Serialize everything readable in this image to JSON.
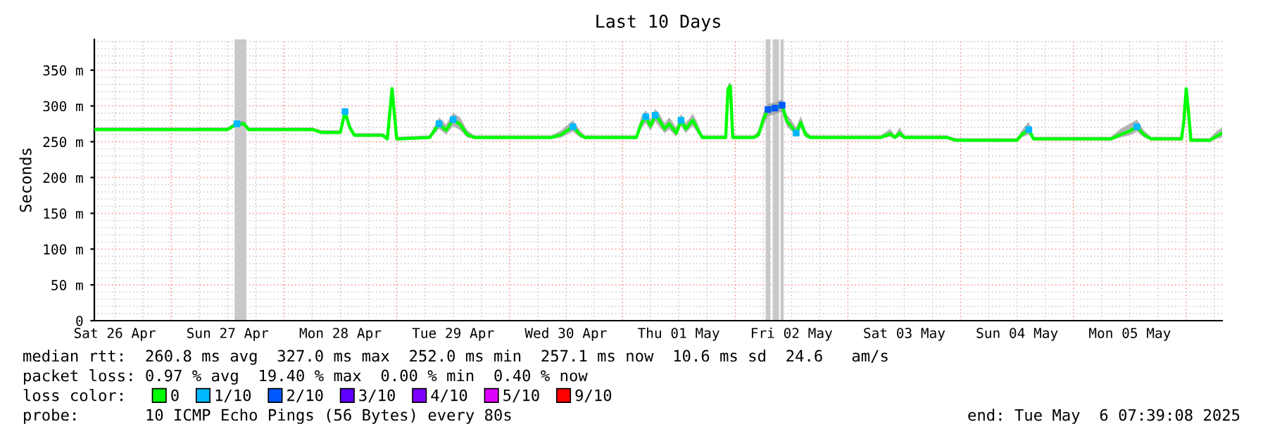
{
  "chart_data": {
    "type": "line",
    "title": "Last 10 Days",
    "ylabel": "Seconds",
    "xlim": [
      "2025-04-26T07:39",
      "2025-05-06T07:39"
    ],
    "xticks": [
      {
        "value": "2025-04-26T12:00",
        "label": "Sat 26 Apr"
      },
      {
        "value": "2025-04-27T12:00",
        "label": "Sun 27 Apr"
      },
      {
        "value": "2025-04-28T12:00",
        "label": "Mon 28 Apr"
      },
      {
        "value": "2025-04-29T12:00",
        "label": "Tue 29 Apr"
      },
      {
        "value": "2025-04-30T12:00",
        "label": "Wed 30 Apr"
      },
      {
        "value": "2025-05-01T12:00",
        "label": "Thu 01 May"
      },
      {
        "value": "2025-05-02T12:00",
        "label": "Fri 02 May"
      },
      {
        "value": "2025-05-03T12:00",
        "label": "Sat 03 May"
      },
      {
        "value": "2025-05-04T12:00",
        "label": "Sun 04 May"
      },
      {
        "value": "2025-05-05T12:00",
        "label": "Mon 05 May"
      }
    ],
    "ylim": [
      0,
      393
    ],
    "yticks": [
      0,
      {
        "value": 50,
        "label": "50 m"
      },
      {
        "value": 100,
        "label": "100 m"
      },
      {
        "value": 150,
        "label": "150 m"
      },
      {
        "value": 200,
        "label": "200 m"
      },
      {
        "value": 250,
        "label": "250 m"
      },
      {
        "value": 300,
        "label": "300 m"
      },
      {
        "value": 350,
        "label": "350 m"
      }
    ],
    "grid": true,
    "legend": "bottom",
    "legend_title": "loss color:",
    "marker": "none",
    "line_style": "solid",
    "series": [
      {
        "name": "0",
        "color": "#00ff00",
        "x": [
          "2025-04-26T07:39",
          "2025-04-26T21:00",
          "2025-04-27T12:00",
          "2025-04-27T14:00",
          "2025-04-27T15:30",
          "2025-04-27T16:30",
          "2025-04-28T06:00",
          "2025-04-28T08:00",
          "2025-04-28T12:00",
          "2025-04-28T13:00",
          "2025-04-28T14:00",
          "2025-04-28T15:00",
          "2025-04-28T21:00",
          "2025-04-28T22:00",
          "2025-04-28T23:00",
          "2025-04-29T00:00",
          "2025-04-29T07:00",
          "2025-04-29T09:00",
          "2025-04-29T10:30",
          "2025-04-29T12:00",
          "2025-04-29T13:30",
          "2025-04-29T15:00",
          "2025-04-29T16:30",
          "2025-04-30T09:00",
          "2025-04-30T11:00",
          "2025-04-30T13:30",
          "2025-04-30T15:00",
          "2025-04-30T16:00",
          "2025-05-01T03:00",
          "2025-05-01T04:00",
          "2025-05-01T05:00",
          "2025-05-01T06:00",
          "2025-05-01T07:00",
          "2025-05-01T08:00",
          "2025-05-01T09:00",
          "2025-05-01T10:00",
          "2025-05-01T11:30",
          "2025-05-01T12:30",
          "2025-05-01T13:30",
          "2025-05-01T15:00",
          "2025-05-01T16:00",
          "2025-05-01T17:00",
          "2025-05-01T22:00",
          "2025-05-01T22:30",
          "2025-05-01T23:00",
          "2025-05-01T23:30",
          "2025-05-02T04:00",
          "2025-05-02T05:00",
          "2025-05-02T06:00",
          "2025-05-02T07:00",
          "2025-05-02T08:30",
          "2025-05-02T10:00",
          "2025-05-02T11:00",
          "2025-05-02T12:00",
          "2025-05-02T13:00",
          "2025-05-02T14:00",
          "2025-05-02T15:00",
          "2025-05-02T16:00",
          "2025-05-03T07:00",
          "2025-05-03T09:00",
          "2025-05-03T10:00",
          "2025-05-03T11:00",
          "2025-05-03T12:00",
          "2025-05-03T21:00",
          "2025-05-03T23:00",
          "2025-05-04T12:00",
          "2025-05-04T13:00",
          "2025-05-04T14:30",
          "2025-05-04T15:30",
          "2025-05-05T08:00",
          "2025-05-05T10:00",
          "2025-05-05T12:00",
          "2025-05-05T13:30",
          "2025-05-05T15:00",
          "2025-05-05T16:30",
          "2025-05-05T23:00",
          "2025-05-05T23:30",
          "2025-05-06T00:00",
          "2025-05-06T00:30",
          "2025-05-06T01:00",
          "2025-05-06T05:00",
          "2025-05-06T06:30",
          "2025-05-06T07:39"
        ],
        "values": [
          267,
          267,
          267,
          275,
          275,
          267,
          267,
          263,
          263,
          292,
          270,
          259,
          259,
          254,
          324,
          254,
          256,
          275,
          266,
          281,
          274,
          260,
          256,
          256,
          260,
          271,
          260,
          256,
          256,
          275,
          285,
          272,
          287,
          279,
          268,
          275,
          262,
          280,
          268,
          280,
          268,
          256,
          256,
          324,
          328,
          256,
          256,
          260,
          281,
          295,
          297,
          301,
          279,
          271,
          262,
          277,
          260,
          256,
          256,
          261,
          256,
          262,
          256,
          256,
          252,
          252,
          260,
          267,
          254,
          254,
          260,
          265,
          271,
          260,
          254,
          254,
          279,
          324,
          291,
          252,
          252,
          258,
          262
        ],
        "lower": [
          265,
          265,
          265,
          272,
          272,
          265,
          265,
          261,
          261,
          285,
          265,
          257,
          257,
          252,
          318,
          252,
          254,
          268,
          260,
          272,
          266,
          256,
          254,
          254,
          256,
          264,
          256,
          254,
          254,
          268,
          276,
          265,
          278,
          270,
          262,
          267,
          257,
          272,
          262,
          272,
          262,
          254,
          254,
          318,
          322,
          254,
          254,
          256,
          272,
          286,
          288,
          292,
          271,
          265,
          257,
          269,
          256,
          254,
          254,
          257,
          254,
          257,
          254,
          254,
          250,
          250,
          256,
          260,
          252,
          252,
          256,
          259,
          264,
          256,
          252,
          252,
          272,
          318,
          285,
          250,
          250,
          254,
          256
        ],
        "upper": [
          270,
          270,
          270,
          279,
          279,
          270,
          270,
          266,
          266,
          298,
          276,
          262,
          262,
          257,
          330,
          257,
          259,
          284,
          274,
          290,
          284,
          266,
          259,
          259,
          266,
          280,
          266,
          259,
          259,
          284,
          294,
          281,
          296,
          288,
          276,
          284,
          270,
          289,
          276,
          289,
          276,
          259,
          259,
          330,
          334,
          259,
          259,
          266,
          290,
          303,
          305,
          309,
          288,
          280,
          270,
          286,
          266,
          259,
          259,
          268,
          259,
          270,
          259,
          259,
          255,
          255,
          266,
          278,
          257,
          257,
          268,
          275,
          281,
          266,
          257,
          257,
          286,
          330,
          297,
          255,
          255,
          265,
          270
        ]
      },
      {
        "name": "1/10",
        "type": "scatter",
        "marker": "square",
        "color": "#00b8ff",
        "x": [
          "2025-04-27T14:00",
          "2025-04-28T13:00",
          "2025-04-29T09:00",
          "2025-04-29T12:00",
          "2025-04-30T13:30",
          "2025-05-01T05:00",
          "2025-05-01T07:00",
          "2025-05-01T12:30",
          "2025-05-02T13:00",
          "2025-05-04T14:30",
          "2025-05-05T13:30"
        ],
        "values": [
          275,
          292,
          275,
          281,
          271,
          285,
          287,
          280,
          262,
          267,
          271
        ]
      },
      {
        "name": "2/10",
        "type": "scatter",
        "marker": "square",
        "color": "#0059ff",
        "x": [
          "2025-05-02T07:00",
          "2025-05-02T08:30",
          "2025-05-02T10:00"
        ],
        "values": [
          295,
          297,
          301
        ]
      },
      {
        "name": "3/10",
        "type": "scatter",
        "color": "#5e00ff"
      },
      {
        "name": "4/10",
        "type": "scatter",
        "color": "#7e00ff"
      },
      {
        "name": "5/10",
        "type": "scatter",
        "color": "#dd00ff"
      },
      {
        "name": "9/10",
        "type": "scatter",
        "color": "#ff0000"
      }
    ],
    "bands": [
      {
        "axis": "x",
        "from": "2025-04-27T13:30",
        "to": "2025-04-27T16:00",
        "color": "#c8c8c8"
      },
      {
        "axis": "x",
        "from": "2025-05-02T06:30",
        "to": "2025-05-02T07:30",
        "color": "#c8c8c8"
      },
      {
        "axis": "x",
        "from": "2025-05-02T08:00",
        "to": "2025-05-02T09:20",
        "color": "#c8c8c8"
      },
      {
        "axis": "x",
        "from": "2025-05-02T09:40",
        "to": "2025-05-02T10:20",
        "color": "#c8c8c8"
      }
    ],
    "annotations": [
      "median rtt:  260.8 ms avg  327.0 ms max  252.0 ms min  257.1 ms now  10.6 ms sd  24.6   am/s",
      "packet loss: 0.97 % avg  19.40 % max  0.00 % min  0.40 % now",
      "probe:       10 ICMP Echo Pings (56 Bytes) every 80s",
      "end: Tue May  6 07:39:08 2025"
    ]
  }
}
